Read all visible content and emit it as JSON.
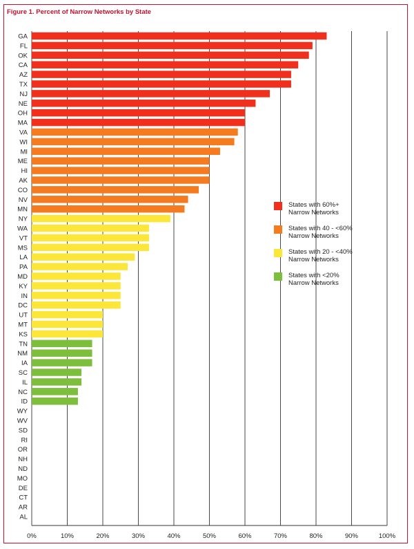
{
  "chart_data": {
    "type": "bar",
    "orientation": "horizontal",
    "title": "Figure 1. Percent of Narrow Networks by State",
    "xlabel": "",
    "ylabel": "",
    "xlim": [
      0,
      100
    ],
    "x_ticks": [
      "0%",
      "10%",
      "20%",
      "30%",
      "40%",
      "50%",
      "60%",
      "70%",
      "80%",
      "90%",
      "100%"
    ],
    "grid": "vertical",
    "legend_position": "right",
    "categories": [
      "GA",
      "FL",
      "OK",
      "CA",
      "AZ",
      "TX",
      "NJ",
      "NE",
      "OH",
      "MA",
      "VA",
      "WI",
      "MI",
      "ME",
      "HI",
      "AK",
      "CO",
      "NV",
      "MN",
      "NY",
      "WA",
      "VT",
      "MS",
      "LA",
      "PA",
      "MD",
      "KY",
      "IN",
      "DC",
      "UT",
      "MT",
      "KS",
      "TN",
      "NM",
      "IA",
      "SC",
      "IL",
      "NC",
      "ID",
      "WY",
      "WV",
      "SD",
      "RI",
      "OR",
      "NH",
      "ND",
      "MO",
      "DE",
      "CT",
      "AR",
      "AL"
    ],
    "values": [
      83,
      79,
      78,
      75,
      73,
      73,
      67,
      63,
      60,
      60,
      58,
      57,
      53,
      50,
      50,
      50,
      47,
      44,
      43,
      39,
      33,
      33,
      33,
      29,
      27,
      25,
      25,
      25,
      25,
      20,
      20,
      20,
      17,
      17,
      17,
      14,
      14,
      13,
      13,
      0,
      0,
      0,
      0,
      0,
      0,
      0,
      0,
      0,
      0,
      0,
      0
    ],
    "groups": [
      {
        "label_line1": "States with 60%+",
        "label_line2": "Narrow Networks",
        "color": "#f0301c",
        "min": 60,
        "max": 101
      },
      {
        "label_line1": "States with 40 - <60%",
        "label_line2": "Narrow Networks",
        "color": "#f47b20",
        "min": 40,
        "max": 60
      },
      {
        "label_line1": "States with 20 - <40%",
        "label_line2": "Narrow Networks",
        "color": "#fce63a",
        "min": 20,
        "max": 40
      },
      {
        "label_line1": "States with <20%",
        "label_line2": "Narrow Networks",
        "color": "#7dbf3c",
        "min": 0,
        "max": 20
      }
    ]
  }
}
